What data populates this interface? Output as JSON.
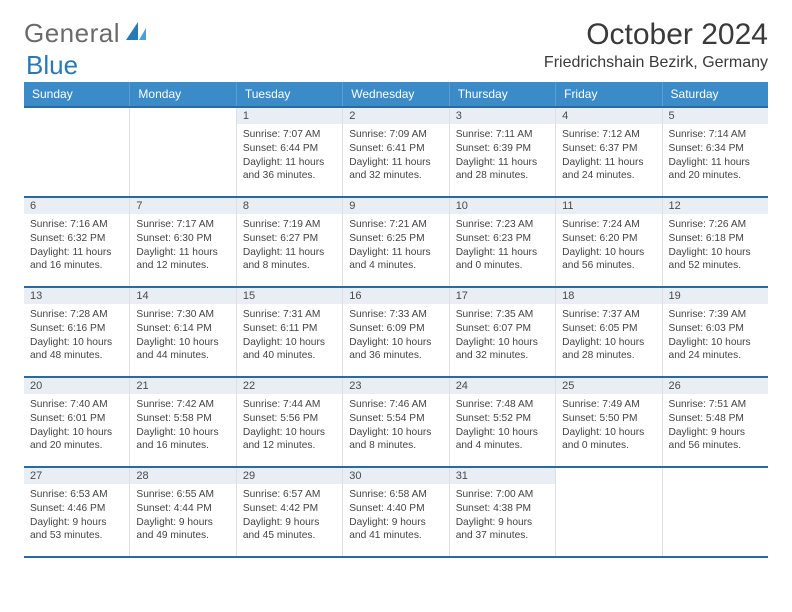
{
  "logo": {
    "part1": "General",
    "part2": "Blue"
  },
  "title": "October 2024",
  "location": "Friedrichshain Bezirk, Germany",
  "header_bg": "#3b8bc9",
  "divider_color": "#2a6aa0",
  "daynum_bg": "#e8eef3",
  "dayNames": [
    "Sunday",
    "Monday",
    "Tuesday",
    "Wednesday",
    "Thursday",
    "Friday",
    "Saturday"
  ],
  "weeks": [
    [
      null,
      null,
      {
        "n": "1",
        "sr": "Sunrise: 7:07 AM",
        "ss": "Sunset: 6:44 PM",
        "dl1": "Daylight: 11 hours",
        "dl2": "and 36 minutes."
      },
      {
        "n": "2",
        "sr": "Sunrise: 7:09 AM",
        "ss": "Sunset: 6:41 PM",
        "dl1": "Daylight: 11 hours",
        "dl2": "and 32 minutes."
      },
      {
        "n": "3",
        "sr": "Sunrise: 7:11 AM",
        "ss": "Sunset: 6:39 PM",
        "dl1": "Daylight: 11 hours",
        "dl2": "and 28 minutes."
      },
      {
        "n": "4",
        "sr": "Sunrise: 7:12 AM",
        "ss": "Sunset: 6:37 PM",
        "dl1": "Daylight: 11 hours",
        "dl2": "and 24 minutes."
      },
      {
        "n": "5",
        "sr": "Sunrise: 7:14 AM",
        "ss": "Sunset: 6:34 PM",
        "dl1": "Daylight: 11 hours",
        "dl2": "and 20 minutes."
      }
    ],
    [
      {
        "n": "6",
        "sr": "Sunrise: 7:16 AM",
        "ss": "Sunset: 6:32 PM",
        "dl1": "Daylight: 11 hours",
        "dl2": "and 16 minutes."
      },
      {
        "n": "7",
        "sr": "Sunrise: 7:17 AM",
        "ss": "Sunset: 6:30 PM",
        "dl1": "Daylight: 11 hours",
        "dl2": "and 12 minutes."
      },
      {
        "n": "8",
        "sr": "Sunrise: 7:19 AM",
        "ss": "Sunset: 6:27 PM",
        "dl1": "Daylight: 11 hours",
        "dl2": "and 8 minutes."
      },
      {
        "n": "9",
        "sr": "Sunrise: 7:21 AM",
        "ss": "Sunset: 6:25 PM",
        "dl1": "Daylight: 11 hours",
        "dl2": "and 4 minutes."
      },
      {
        "n": "10",
        "sr": "Sunrise: 7:23 AM",
        "ss": "Sunset: 6:23 PM",
        "dl1": "Daylight: 11 hours",
        "dl2": "and 0 minutes."
      },
      {
        "n": "11",
        "sr": "Sunrise: 7:24 AM",
        "ss": "Sunset: 6:20 PM",
        "dl1": "Daylight: 10 hours",
        "dl2": "and 56 minutes."
      },
      {
        "n": "12",
        "sr": "Sunrise: 7:26 AM",
        "ss": "Sunset: 6:18 PM",
        "dl1": "Daylight: 10 hours",
        "dl2": "and 52 minutes."
      }
    ],
    [
      {
        "n": "13",
        "sr": "Sunrise: 7:28 AM",
        "ss": "Sunset: 6:16 PM",
        "dl1": "Daylight: 10 hours",
        "dl2": "and 48 minutes."
      },
      {
        "n": "14",
        "sr": "Sunrise: 7:30 AM",
        "ss": "Sunset: 6:14 PM",
        "dl1": "Daylight: 10 hours",
        "dl2": "and 44 minutes."
      },
      {
        "n": "15",
        "sr": "Sunrise: 7:31 AM",
        "ss": "Sunset: 6:11 PM",
        "dl1": "Daylight: 10 hours",
        "dl2": "and 40 minutes."
      },
      {
        "n": "16",
        "sr": "Sunrise: 7:33 AM",
        "ss": "Sunset: 6:09 PM",
        "dl1": "Daylight: 10 hours",
        "dl2": "and 36 minutes."
      },
      {
        "n": "17",
        "sr": "Sunrise: 7:35 AM",
        "ss": "Sunset: 6:07 PM",
        "dl1": "Daylight: 10 hours",
        "dl2": "and 32 minutes."
      },
      {
        "n": "18",
        "sr": "Sunrise: 7:37 AM",
        "ss": "Sunset: 6:05 PM",
        "dl1": "Daylight: 10 hours",
        "dl2": "and 28 minutes."
      },
      {
        "n": "19",
        "sr": "Sunrise: 7:39 AM",
        "ss": "Sunset: 6:03 PM",
        "dl1": "Daylight: 10 hours",
        "dl2": "and 24 minutes."
      }
    ],
    [
      {
        "n": "20",
        "sr": "Sunrise: 7:40 AM",
        "ss": "Sunset: 6:01 PM",
        "dl1": "Daylight: 10 hours",
        "dl2": "and 20 minutes."
      },
      {
        "n": "21",
        "sr": "Sunrise: 7:42 AM",
        "ss": "Sunset: 5:58 PM",
        "dl1": "Daylight: 10 hours",
        "dl2": "and 16 minutes."
      },
      {
        "n": "22",
        "sr": "Sunrise: 7:44 AM",
        "ss": "Sunset: 5:56 PM",
        "dl1": "Daylight: 10 hours",
        "dl2": "and 12 minutes."
      },
      {
        "n": "23",
        "sr": "Sunrise: 7:46 AM",
        "ss": "Sunset: 5:54 PM",
        "dl1": "Daylight: 10 hours",
        "dl2": "and 8 minutes."
      },
      {
        "n": "24",
        "sr": "Sunrise: 7:48 AM",
        "ss": "Sunset: 5:52 PM",
        "dl1": "Daylight: 10 hours",
        "dl2": "and 4 minutes."
      },
      {
        "n": "25",
        "sr": "Sunrise: 7:49 AM",
        "ss": "Sunset: 5:50 PM",
        "dl1": "Daylight: 10 hours",
        "dl2": "and 0 minutes."
      },
      {
        "n": "26",
        "sr": "Sunrise: 7:51 AM",
        "ss": "Sunset: 5:48 PM",
        "dl1": "Daylight: 9 hours",
        "dl2": "and 56 minutes."
      }
    ],
    [
      {
        "n": "27",
        "sr": "Sunrise: 6:53 AM",
        "ss": "Sunset: 4:46 PM",
        "dl1": "Daylight: 9 hours",
        "dl2": "and 53 minutes."
      },
      {
        "n": "28",
        "sr": "Sunrise: 6:55 AM",
        "ss": "Sunset: 4:44 PM",
        "dl1": "Daylight: 9 hours",
        "dl2": "and 49 minutes."
      },
      {
        "n": "29",
        "sr": "Sunrise: 6:57 AM",
        "ss": "Sunset: 4:42 PM",
        "dl1": "Daylight: 9 hours",
        "dl2": "and 45 minutes."
      },
      {
        "n": "30",
        "sr": "Sunrise: 6:58 AM",
        "ss": "Sunset: 4:40 PM",
        "dl1": "Daylight: 9 hours",
        "dl2": "and 41 minutes."
      },
      {
        "n": "31",
        "sr": "Sunrise: 7:00 AM",
        "ss": "Sunset: 4:38 PM",
        "dl1": "Daylight: 9 hours",
        "dl2": "and 37 minutes."
      },
      null,
      null
    ]
  ]
}
